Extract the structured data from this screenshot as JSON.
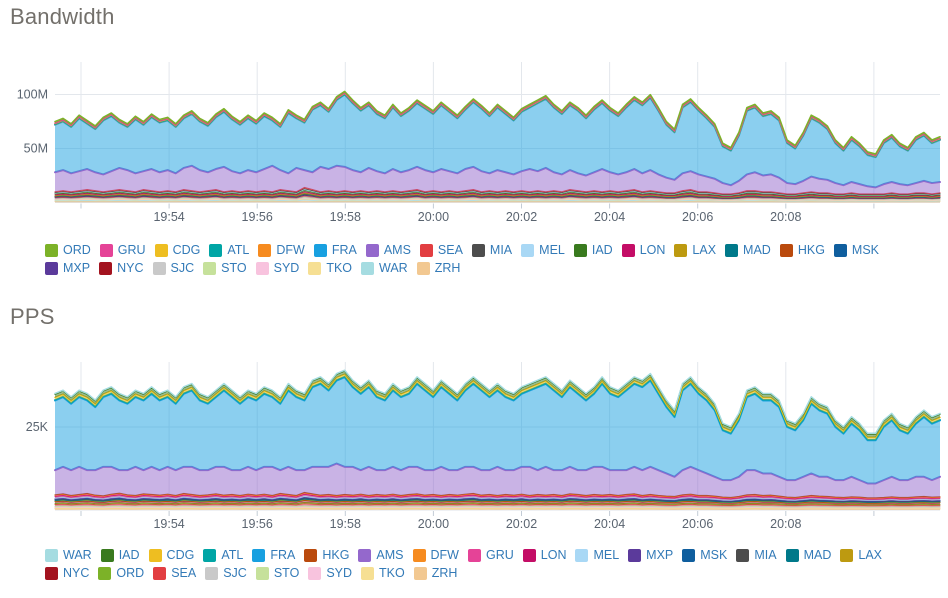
{
  "palette": {
    "ORD": "#7cb228",
    "GRU": "#e54397",
    "CDG": "#eebe21",
    "ATL": "#00a5a5",
    "DFW": "#f68b1f",
    "FRA": "#18a0e0",
    "AMS": "#9468cc",
    "SEA": "#e23e41",
    "MIA": "#4d4d4d",
    "MEL": "#a9d8f5",
    "IAD": "#397a1e",
    "LON": "#c40d66",
    "LAX": "#bd9a10",
    "MAD": "#00798a",
    "HKG": "#ba4a0d",
    "MSK": "#0f5e9e",
    "MXP": "#5b3a9b",
    "NYC": "#a3131f",
    "SJC": "#c9c9c9",
    "STO": "#c6e19b",
    "SYD": "#f8c3de",
    "TKO": "#f6df93",
    "WAR": "#a5dce1",
    "ZRH": "#f2c891"
  },
  "chart_data": [
    {
      "type": "area",
      "stacked": true,
      "title": "Bandwidth",
      "unit_suffix": "M",
      "ylim": [
        0,
        130
      ],
      "grid": true,
      "legend_position": "bottom",
      "y_ticks": [
        {
          "label": "100M",
          "value": 100
        },
        {
          "label": "50M",
          "value": 50
        }
      ],
      "x_ticks": [
        "19:54",
        "19:56",
        "19:58",
        "20:00",
        "20:02",
        "20:04",
        "20:06",
        "20:08"
      ],
      "legend_rows": [
        [
          "ORD",
          "GRU",
          "CDG",
          "ATL",
          "DFW",
          "FRA",
          "AMS",
          "SEA",
          "MIA",
          "MEL",
          "IAD",
          "LON",
          "LAX",
          "MAD",
          "HKG",
          "MSK"
        ],
        [
          "MXP",
          "NYC",
          "SJC",
          "STO",
          "SYD",
          "TKO",
          "WAR",
          "ZRH"
        ]
      ],
      "small_series": [
        {
          "code": "ZRH",
          "w": 0.1
        },
        {
          "code": "WAR",
          "w": 0.12
        },
        {
          "code": "TKO",
          "w": 0.05
        },
        {
          "code": "SYD",
          "w": 0.05
        },
        {
          "code": "STO",
          "w": 0.06
        },
        {
          "code": "SJC",
          "w": 0.04
        },
        {
          "code": "NYC",
          "w": 0.12
        },
        {
          "code": "MXP",
          "w": 0.03
        },
        {
          "code": "MSK",
          "w": 0.03
        },
        {
          "code": "HKG",
          "w": 0.03
        },
        {
          "code": "MAD",
          "w": 0.03
        },
        {
          "code": "LAX",
          "w": 0.05
        },
        {
          "code": "LON",
          "w": 0.1
        },
        {
          "code": "IAD",
          "w": 0.11
        },
        {
          "code": "MEL",
          "w": 0.08
        },
        {
          "code": "MIA",
          "w": 0.04
        },
        {
          "code": "SEA",
          "w": 0.09
        }
      ],
      "top_series": [
        {
          "code": "DFW",
          "v": 0.2
        },
        {
          "code": "ATL",
          "v": 0.2
        },
        {
          "code": "CDG",
          "v": 0.8
        },
        {
          "code": "GRU",
          "v": 0.3
        },
        {
          "code": "ORD",
          "v": 1.4
        }
      ],
      "levels": {
        "band_top": [
          10,
          11,
          10,
          11,
          12,
          11,
          10,
          11,
          12,
          11,
          10,
          12,
          11,
          10,
          11,
          10,
          12,
          11,
          10,
          11,
          12,
          10,
          11,
          10,
          11,
          10,
          11,
          10,
          12,
          11,
          10,
          14,
          12,
          10,
          11,
          10,
          11,
          10,
          11,
          10,
          11,
          10,
          11,
          10,
          11,
          12,
          10,
          11,
          10,
          11,
          10,
          11,
          12,
          10,
          11,
          10,
          11,
          10,
          11,
          10,
          11,
          10,
          11,
          10,
          12,
          11,
          10,
          11,
          10,
          11,
          10,
          11,
          12,
          10,
          11,
          10,
          9,
          9,
          11,
          12,
          10,
          10,
          9,
          8,
          8,
          9,
          11,
          11,
          10,
          10,
          9,
          8,
          8,
          9,
          10,
          9,
          9,
          8,
          8,
          9,
          8,
          8,
          8,
          8,
          9,
          8,
          8,
          9,
          9,
          8,
          9
        ],
        "ams_top": [
          28,
          30,
          27,
          29,
          31,
          28,
          26,
          29,
          32,
          30,
          27,
          29,
          31,
          28,
          30,
          27,
          32,
          34,
          30,
          28,
          31,
          33,
          29,
          27,
          30,
          28,
          31,
          34,
          30,
          27,
          32,
          30,
          28,
          33,
          31,
          34,
          33,
          30,
          28,
          32,
          29,
          27,
          31,
          28,
          30,
          33,
          30,
          28,
          31,
          29,
          27,
          31,
          33,
          29,
          27,
          30,
          28,
          26,
          29,
          31,
          29,
          32,
          28,
          26,
          30,
          27,
          25,
          28,
          31,
          28,
          26,
          28,
          31,
          27,
          30,
          26,
          23,
          21,
          27,
          29,
          26,
          24,
          22,
          18,
          16,
          20,
          26,
          28,
          25,
          26,
          23,
          18,
          17,
          20,
          24,
          22,
          21,
          18,
          16,
          19,
          17,
          15,
          14,
          17,
          19,
          17,
          16,
          18,
          20,
          18,
          19
        ],
        "fra_top": [
          72,
          75,
          70,
          78,
          73,
          68,
          76,
          80,
          74,
          70,
          77,
          72,
          79,
          74,
          76,
          70,
          78,
          82,
          75,
          71,
          79,
          84,
          77,
          72,
          78,
          73,
          80,
          76,
          70,
          83,
          78,
          74,
          86,
          90,
          84,
          95,
          100,
          92,
          85,
          90,
          82,
          78,
          88,
          80,
          85,
          92,
          87,
          82,
          90,
          84,
          78,
          86,
          93,
          87,
          80,
          88,
          82,
          76,
          84,
          88,
          92,
          96,
          88,
          82,
          90,
          85,
          78,
          86,
          92,
          85,
          80,
          88,
          95,
          90,
          97,
          85,
          72,
          65,
          88,
          93,
          85,
          78,
          70,
          52,
          48,
          62,
          85,
          88,
          80,
          82,
          76,
          55,
          50,
          62,
          78,
          74,
          68,
          55,
          48,
          58,
          52,
          44,
          42,
          55,
          60,
          52,
          48,
          58,
          62,
          55,
          58
        ]
      }
    },
    {
      "type": "area",
      "stacked": true,
      "title": "PPS",
      "unit_suffix": "K",
      "ylim": [
        0,
        44
      ],
      "grid": true,
      "legend_position": "bottom",
      "y_ticks": [
        {
          "label": "25K",
          "value": 25
        }
      ],
      "x_ticks": [
        "19:54",
        "19:56",
        "19:58",
        "20:00",
        "20:02",
        "20:04",
        "20:06",
        "20:08"
      ],
      "legend_rows": [
        [
          "WAR",
          "IAD",
          "CDG",
          "ATL",
          "FRA",
          "HKG",
          "AMS",
          "DFW",
          "GRU",
          "LON",
          "MEL",
          "MXP",
          "MSK",
          "MIA",
          "MAD",
          "LAX"
        ],
        [
          "NYC",
          "ORD",
          "SEA",
          "SJC",
          "STO",
          "SYD",
          "TKO",
          "ZRH"
        ]
      ],
      "small_series": [
        {
          "code": "ZRH",
          "w": 0.08
        },
        {
          "code": "TKO",
          "w": 0.05
        },
        {
          "code": "SYD",
          "w": 0.05
        },
        {
          "code": "STO",
          "w": 0.06
        },
        {
          "code": "SJC",
          "w": 0.04
        },
        {
          "code": "SEA",
          "w": 0.09
        },
        {
          "code": "ORD",
          "w": 0.07
        },
        {
          "code": "NYC",
          "w": 0.12
        },
        {
          "code": "LAX",
          "w": 0.04
        },
        {
          "code": "MAD",
          "w": 0.04
        },
        {
          "code": "MIA",
          "w": 0.05
        },
        {
          "code": "MSK",
          "w": 0.03
        },
        {
          "code": "MXP",
          "w": 0.03
        },
        {
          "code": "MEL",
          "w": 0.07
        },
        {
          "code": "LON",
          "w": 0.1
        },
        {
          "code": "GRU",
          "w": 0.05
        },
        {
          "code": "DFW",
          "w": 0.03
        },
        {
          "code": "HKG",
          "w": 0.03
        }
      ],
      "top_series": [
        {
          "code": "ATL",
          "v": 0.2
        },
        {
          "code": "CDG",
          "v": 0.7
        },
        {
          "code": "IAD",
          "v": 1.0
        },
        {
          "code": "WAR",
          "v": 0.2
        }
      ],
      "levels": {
        "band_top": [
          4.6,
          4.9,
          4.4,
          4.7,
          5.0,
          4.5,
          4.3,
          4.8,
          5.1,
          4.6,
          4.4,
          4.9,
          4.7,
          4.5,
          4.8,
          4.4,
          5.0,
          4.7,
          4.4,
          4.6,
          4.9,
          4.5,
          4.7,
          4.4,
          4.8,
          4.5,
          4.8,
          4.4,
          5.0,
          4.7,
          4.4,
          5.3,
          4.9,
          4.5,
          4.7,
          4.4,
          4.7,
          4.5,
          4.8,
          4.4,
          4.7,
          4.5,
          4.8,
          4.4,
          4.7,
          4.9,
          4.5,
          4.7,
          4.4,
          4.7,
          4.5,
          4.8,
          5.0,
          4.5,
          4.7,
          4.4,
          4.7,
          4.5,
          4.8,
          4.4,
          4.7,
          4.5,
          4.7,
          4.4,
          4.9,
          4.7,
          4.4,
          4.7,
          4.5,
          4.7,
          4.4,
          4.7,
          4.9,
          4.4,
          4.7,
          4.4,
          4.2,
          4.1,
          4.6,
          4.8,
          4.4,
          4.4,
          4.2,
          3.9,
          3.8,
          4.1,
          4.6,
          4.7,
          4.4,
          4.5,
          4.2,
          3.9,
          3.8,
          4.1,
          4.4,
          4.2,
          4.1,
          3.9,
          3.8,
          4.0,
          3.9,
          3.7,
          3.7,
          3.8,
          4.0,
          3.8,
          3.8,
          4.0,
          4.1,
          3.9,
          4.0
        ],
        "ams_top": [
          12,
          13,
          12,
          13,
          12,
          12,
          13,
          13,
          12,
          12,
          13,
          12,
          13,
          12,
          13,
          12,
          13,
          13,
          12,
          12,
          13,
          13,
          12,
          12,
          13,
          12,
          13,
          13,
          12,
          13,
          12,
          12,
          13,
          13,
          13,
          14,
          13,
          13,
          12,
          13,
          12,
          12,
          13,
          12,
          13,
          13,
          12,
          12,
          13,
          12,
          12,
          13,
          13,
          12,
          12,
          13,
          12,
          12,
          13,
          13,
          12,
          13,
          12,
          12,
          13,
          12,
          12,
          13,
          13,
          12,
          12,
          12,
          13,
          12,
          13,
          12,
          11,
          10,
          12,
          13,
          12,
          11,
          10,
          9,
          9,
          10,
          12,
          12,
          11,
          11,
          10,
          9,
          9,
          10,
          11,
          10,
          10,
          9,
          9,
          10,
          9,
          8,
          8,
          9,
          10,
          9,
          9,
          10,
          10,
          9,
          10
        ],
        "fra_top": [
          33,
          34,
          32,
          34,
          33,
          31,
          34,
          35,
          33,
          32,
          34,
          33,
          35,
          33,
          34,
          32,
          35,
          36,
          33,
          32,
          34,
          36,
          34,
          32,
          34,
          33,
          35,
          34,
          32,
          36,
          34,
          33,
          37,
          38,
          36,
          39,
          40,
          37,
          35,
          37,
          34,
          33,
          36,
          34,
          35,
          38,
          36,
          34,
          37,
          35,
          33,
          36,
          38,
          36,
          34,
          36,
          34,
          33,
          35,
          36,
          37,
          38,
          36,
          34,
          37,
          35,
          33,
          35,
          38,
          35,
          34,
          36,
          38,
          37,
          39,
          35,
          31,
          28,
          36,
          38,
          35,
          33,
          30,
          24,
          23,
          27,
          34,
          35,
          33,
          33,
          31,
          25,
          24,
          27,
          32,
          30,
          29,
          25,
          23,
          26,
          24,
          21,
          21,
          25,
          27,
          24,
          23,
          26,
          28,
          26,
          27
        ]
      }
    }
  ]
}
